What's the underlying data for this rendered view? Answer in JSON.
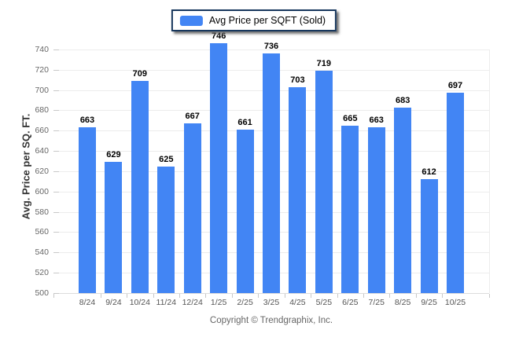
{
  "legend": {
    "label": "Avg Price per SQFT (Sold)"
  },
  "footer": {
    "copyright": "Copyright © Trendgraphix, Inc."
  },
  "colors": {
    "bar": "#4285f4",
    "legend_border": "#17375d"
  },
  "chart_data": {
    "type": "bar",
    "title": "Avg Price per SQFT (Sold)",
    "categories": [
      "8/24",
      "9/24",
      "10/24",
      "11/24",
      "12/24",
      "1/25",
      "2/25",
      "3/25",
      "4/25",
      "5/25",
      "6/25",
      "7/25",
      "8/25",
      "9/25",
      "10/25"
    ],
    "values": [
      663,
      629,
      709,
      625,
      667,
      746,
      661,
      736,
      703,
      719,
      665,
      663,
      683,
      612,
      697
    ],
    "series": [
      {
        "name": "Avg Price per SQFT (Sold)",
        "values": [
          663,
          629,
          709,
          625,
          667,
          746,
          661,
          736,
          703,
          719,
          665,
          663,
          683,
          612,
          697
        ]
      }
    ],
    "xlabel": "",
    "ylabel": "Avg. Price per SQ. FT.",
    "ylim": [
      500,
      750
    ],
    "yticks": {
      "min": 500,
      "max": 740,
      "step": 20
    },
    "grid": true,
    "legend_position": "top",
    "bar_color": "#4285f4",
    "value_labels": true
  }
}
